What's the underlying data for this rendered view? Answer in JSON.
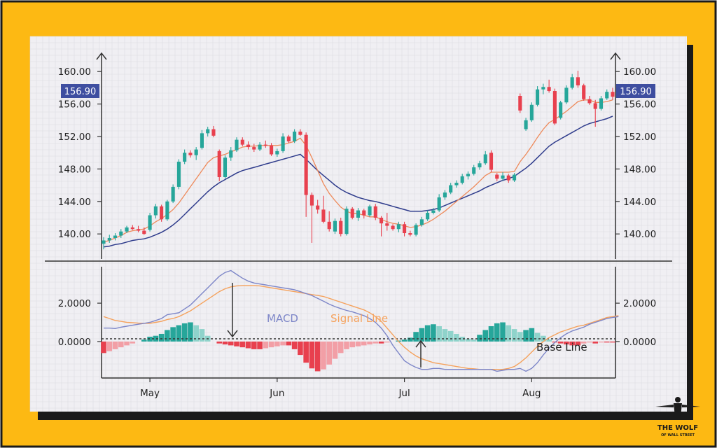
{
  "colors": {
    "frame": "#FDB913",
    "border": "#1a1a1a",
    "panel": "#F0EFF3",
    "grid": "#DCDBE2",
    "up": "#26A69A",
    "up_light": "#8FD3CB",
    "down": "#E8404E",
    "down_light": "#F29FA6",
    "fast_ma": "#EE8A5B",
    "slow_ma": "#2F3C8C",
    "macd_line": "#7D86C8",
    "signal_line": "#F5A25D",
    "price_badge": "#3E4EA0"
  },
  "chart_data": [
    {
      "type": "candlestick",
      "title": "",
      "ylim": [
        137,
        162
      ],
      "yticks": [
        "160.00",
        "156.00",
        "152.00",
        "148.00",
        "144.00",
        "140.00"
      ],
      "ytick_values": [
        160,
        156,
        152,
        148,
        144,
        140
      ],
      "last_price_label": "156.90",
      "last_price": 156.9,
      "xticks": [
        "May",
        "Jun",
        "Jul",
        "Aug"
      ],
      "xtick_positions": [
        8,
        30,
        52,
        74
      ],
      "candles": [
        [
          138.8,
          139.6,
          138.1,
          139.2
        ],
        [
          139.2,
          139.9,
          138.9,
          139.5
        ],
        [
          139.5,
          140.1,
          139.2,
          139.8
        ],
        [
          139.8,
          140.6,
          139.5,
          140.3
        ],
        [
          140.3,
          141.0,
          140.1,
          140.8
        ],
        [
          140.8,
          141.1,
          140.5,
          140.6
        ],
        [
          140.6,
          141.0,
          140.2,
          140.4
        ],
        [
          140.4,
          140.8,
          139.9,
          140.0
        ],
        [
          140.5,
          142.6,
          140.3,
          142.3
        ],
        [
          142.3,
          143.7,
          141.9,
          143.4
        ],
        [
          143.4,
          143.6,
          141.5,
          141.8
        ],
        [
          141.8,
          144.2,
          141.6,
          144.0
        ],
        [
          144.0,
          146.1,
          143.8,
          145.8
        ],
        [
          145.8,
          149.2,
          145.5,
          148.9
        ],
        [
          148.9,
          150.4,
          148.6,
          150.0
        ],
        [
          150.0,
          150.3,
          149.4,
          149.7
        ],
        [
          149.7,
          150.7,
          149.1,
          150.4
        ],
        [
          150.6,
          152.8,
          150.4,
          152.4
        ],
        [
          152.4,
          153.2,
          152.0,
          152.9
        ],
        [
          152.9,
          153.3,
          151.9,
          152.1
        ],
        [
          150.2,
          150.4,
          146.5,
          147.0
        ],
        [
          147.0,
          149.7,
          146.8,
          149.4
        ],
        [
          149.4,
          150.7,
          149.0,
          150.3
        ],
        [
          150.3,
          151.9,
          150.1,
          151.6
        ],
        [
          151.6,
          151.9,
          150.8,
          151.0
        ],
        [
          151.0,
          151.4,
          150.4,
          150.7
        ],
        [
          150.7,
          151.1,
          150.1,
          150.4
        ],
        [
          150.4,
          151.3,
          150.2,
          151.0
        ],
        [
          151.0,
          151.5,
          150.6,
          150.9
        ],
        [
          150.9,
          151.2,
          149.6,
          149.8
        ],
        [
          149.8,
          150.5,
          149.5,
          150.2
        ],
        [
          150.2,
          152.4,
          150.0,
          152.0
        ],
        [
          152.0,
          152.2,
          151.2,
          151.4
        ],
        [
          151.4,
          152.9,
          151.2,
          152.6
        ],
        [
          152.6,
          152.9,
          152.1,
          152.2
        ],
        [
          152.2,
          152.5,
          142.1,
          144.8
        ],
        [
          144.8,
          145.1,
          138.9,
          143.5
        ],
        [
          143.5,
          144.2,
          142.5,
          143.0
        ],
        [
          143.0,
          144.7,
          141.3,
          141.5
        ],
        [
          141.5,
          142.8,
          140.3,
          140.6
        ],
        [
          140.3,
          141.9,
          140.0,
          141.6
        ],
        [
          141.6,
          142.0,
          139.7,
          140.0
        ],
        [
          140.0,
          143.4,
          139.8,
          143.1
        ],
        [
          143.1,
          143.3,
          141.8,
          142.0
        ],
        [
          142.0,
          143.2,
          141.6,
          142.9
        ],
        [
          142.9,
          143.1,
          141.9,
          142.3
        ],
        [
          142.3,
          143.6,
          142.1,
          143.4
        ],
        [
          143.4,
          143.7,
          141.7,
          142.0
        ],
        [
          142.0,
          142.2,
          139.7,
          141.3
        ],
        [
          141.3,
          142.6,
          140.4,
          141.0
        ],
        [
          141.0,
          141.2,
          140.4,
          140.6
        ],
        [
          140.6,
          141.5,
          140.2,
          141.2
        ],
        [
          141.2,
          141.5,
          139.7,
          140.1
        ],
        [
          140.1,
          140.4,
          139.7,
          139.9
        ],
        [
          139.9,
          141.3,
          139.7,
          141.1
        ],
        [
          141.1,
          142.1,
          140.9,
          141.8
        ],
        [
          141.8,
          142.9,
          141.6,
          142.6
        ],
        [
          142.6,
          143.2,
          142.4,
          142.9
        ],
        [
          142.9,
          144.9,
          142.7,
          144.5
        ],
        [
          144.5,
          145.4,
          144.2,
          145.1
        ],
        [
          145.1,
          146.3,
          144.9,
          146.0
        ],
        [
          146.0,
          146.6,
          145.7,
          146.3
        ],
        [
          146.3,
          147.4,
          146.1,
          147.1
        ],
        [
          147.1,
          147.7,
          146.7,
          147.4
        ],
        [
          147.4,
          148.5,
          147.2,
          148.2
        ],
        [
          148.2,
          149.0,
          147.9,
          148.7
        ],
        [
          148.7,
          150.2,
          148.5,
          149.8
        ],
        [
          150.0,
          150.3,
          147.6,
          147.9
        ],
        [
          147.3,
          147.5,
          146.5,
          146.8
        ],
        [
          146.8,
          147.6,
          146.6,
          147.2
        ],
        [
          147.2,
          147.4,
          146.3,
          146.6
        ],
        [
          146.6,
          147.5,
          146.4,
          147.3
        ],
        [
          157.0,
          157.3,
          154.9,
          155.2
        ],
        [
          152.9,
          154.3,
          152.7,
          154.0
        ],
        [
          154.0,
          156.2,
          153.8,
          155.9
        ],
        [
          155.9,
          158.2,
          155.7,
          157.8
        ],
        [
          157.8,
          158.5,
          157.2,
          158.1
        ],
        [
          158.1,
          159.0,
          157.4,
          157.6
        ],
        [
          157.6,
          157.9,
          153.4,
          153.6
        ],
        [
          154.3,
          156.4,
          154.1,
          156.2
        ],
        [
          156.2,
          158.3,
          156.0,
          158.0
        ],
        [
          158.0,
          159.7,
          157.8,
          159.3
        ],
        [
          159.3,
          160.1,
          158.0,
          158.3
        ],
        [
          158.3,
          158.5,
          156.4,
          156.6
        ],
        [
          156.6,
          157.0,
          155.9,
          156.1
        ],
        [
          156.1,
          156.5,
          153.2,
          155.4
        ],
        [
          155.4,
          157.0,
          155.2,
          156.7
        ],
        [
          156.7,
          157.8,
          156.5,
          157.5
        ],
        [
          157.5,
          158.0,
          156.5,
          156.9
        ]
      ],
      "series": [
        {
          "name": "fast_ma",
          "values": [
            139.0,
            139.2,
            139.5,
            139.8,
            140.2,
            140.4,
            140.5,
            140.6,
            141.0,
            141.5,
            141.9,
            142.4,
            143.0,
            143.8,
            144.8,
            145.8,
            146.8,
            147.8,
            148.8,
            149.4,
            149.6,
            149.8,
            150.1,
            150.4,
            150.7,
            150.8,
            150.8,
            150.9,
            150.9,
            150.9,
            150.9,
            151.0,
            151.2,
            151.4,
            151.8,
            150.9,
            149.4,
            147.8,
            146.2,
            145.0,
            144.1,
            143.3,
            142.8,
            142.5,
            142.5,
            142.3,
            142.1,
            142.1,
            141.8,
            141.5,
            141.3,
            141.2,
            141.0,
            140.8,
            140.9,
            141.1,
            141.4,
            141.8,
            142.3,
            142.8,
            143.4,
            144.0,
            144.6,
            145.2,
            145.8,
            146.5,
            147.2,
            147.6,
            147.6,
            147.6,
            147.6,
            147.7,
            148.9,
            149.8,
            150.8,
            151.9,
            152.9,
            153.7,
            154.1,
            154.6,
            155.1,
            155.7,
            156.3,
            156.5,
            156.5,
            156.2,
            156.2,
            156.3,
            156.5
          ]
        },
        {
          "name": "slow_ma",
          "values": [
            138.4,
            138.5,
            138.7,
            138.8,
            139.0,
            139.2,
            139.3,
            139.4,
            139.6,
            139.9,
            140.2,
            140.6,
            141.1,
            141.7,
            142.4,
            143.1,
            143.8,
            144.5,
            145.2,
            145.8,
            146.3,
            146.7,
            147.1,
            147.5,
            147.8,
            148.0,
            148.2,
            148.4,
            148.6,
            148.8,
            149.0,
            149.2,
            149.4,
            149.6,
            149.8,
            149.2,
            148.5,
            147.8,
            147.2,
            146.6,
            146.0,
            145.5,
            145.1,
            144.8,
            144.5,
            144.3,
            144.1,
            144.0,
            143.8,
            143.6,
            143.4,
            143.2,
            143.0,
            142.8,
            142.8,
            142.8,
            142.9,
            143.0,
            143.2,
            143.5,
            143.8,
            144.1,
            144.4,
            144.7,
            145.0,
            145.3,
            145.7,
            146.0,
            146.3,
            146.6,
            146.8,
            147.1,
            147.6,
            148.1,
            148.7,
            149.4,
            150.1,
            150.8,
            151.3,
            151.7,
            152.1,
            152.5,
            152.9,
            153.3,
            153.6,
            153.8,
            154.0,
            154.2,
            154.5
          ]
        }
      ]
    },
    {
      "type": "line+bar",
      "title": "",
      "ylim": [
        -1.9,
        3.9
      ],
      "yticks": [
        "2.0000",
        "0.0000"
      ],
      "ytick_values": [
        2,
        0
      ],
      "series": [
        {
          "name": "MACD",
          "values": [
            0.7,
            0.7,
            0.68,
            0.75,
            0.8,
            0.85,
            0.9,
            0.95,
            1.0,
            1.1,
            1.2,
            1.4,
            1.45,
            1.5,
            1.7,
            1.9,
            2.2,
            2.5,
            2.8,
            3.1,
            3.4,
            3.6,
            3.7,
            3.5,
            3.3,
            3.15,
            3.05,
            3.0,
            2.95,
            2.9,
            2.85,
            2.8,
            2.75,
            2.7,
            2.6,
            2.5,
            2.4,
            2.25,
            2.1,
            1.95,
            1.82,
            1.72,
            1.62,
            1.55,
            1.45,
            1.35,
            1.2,
            1.0,
            0.7,
            0.3,
            -0.2,
            -0.6,
            -1.0,
            -1.2,
            -1.35,
            -1.45,
            -1.45,
            -1.4,
            -1.4,
            -1.45,
            -1.45,
            -1.45,
            -1.45,
            -1.45,
            -1.45,
            -1.45,
            -1.45,
            -1.45,
            -1.55,
            -1.5,
            -1.45,
            -1.45,
            -1.4,
            -1.55,
            -1.4,
            -1.1,
            -0.7,
            -0.35,
            -0.05,
            0.2,
            0.4,
            0.55,
            0.65,
            0.75,
            0.9,
            1.0,
            1.1,
            1.2,
            1.25,
            1.3
          ]
        },
        {
          "name": "Signal Line",
          "values": [
            1.3,
            1.2,
            1.1,
            1.05,
            1.0,
            0.98,
            0.96,
            0.95,
            0.95,
            1.0,
            1.05,
            1.15,
            1.2,
            1.3,
            1.45,
            1.6,
            1.8,
            2.0,
            2.2,
            2.4,
            2.6,
            2.75,
            2.85,
            2.9,
            2.92,
            2.92,
            2.92,
            2.9,
            2.85,
            2.8,
            2.75,
            2.7,
            2.65,
            2.6,
            2.55,
            2.5,
            2.45,
            2.4,
            2.35,
            2.25,
            2.15,
            2.05,
            1.95,
            1.85,
            1.75,
            1.65,
            1.5,
            1.3,
            1.05,
            0.7,
            0.35,
            0.0,
            -0.3,
            -0.55,
            -0.75,
            -0.9,
            -1.0,
            -1.1,
            -1.15,
            -1.2,
            -1.25,
            -1.3,
            -1.35,
            -1.4,
            -1.42,
            -1.45,
            -1.45,
            -1.45,
            -1.45,
            -1.45,
            -1.4,
            -1.3,
            -1.1,
            -0.85,
            -0.55,
            -0.25,
            0.0,
            0.2,
            0.35,
            0.5,
            0.6,
            0.7,
            0.8,
            0.85,
            0.95,
            1.05,
            1.15,
            1.25,
            1.3,
            1.35
          ]
        },
        {
          "name": "Histogram",
          "values": [
            -0.6,
            -0.5,
            -0.4,
            -0.3,
            -0.2,
            -0.1,
            0.0,
            0.1,
            0.25,
            0.3,
            0.4,
            0.6,
            0.75,
            0.85,
            0.95,
            1.0,
            0.85,
            0.65,
            0.3,
            0.0,
            -0.1,
            -0.15,
            -0.2,
            -0.25,
            -0.3,
            -0.35,
            -0.4,
            -0.4,
            -0.35,
            -0.3,
            -0.25,
            -0.2,
            -0.2,
            -0.4,
            -0.7,
            -1.1,
            -1.4,
            -1.55,
            -1.45,
            -1.2,
            -0.9,
            -0.6,
            -0.4,
            -0.3,
            -0.25,
            -0.2,
            -0.15,
            -0.1,
            -0.1,
            -0.05,
            0.0,
            0.05,
            0.1,
            0.2,
            0.5,
            0.7,
            0.85,
            0.9,
            0.8,
            0.65,
            0.55,
            0.4,
            0.25,
            0.15,
            0.1,
            0.35,
            0.6,
            0.8,
            0.95,
            1.0,
            0.85,
            0.65,
            0.5,
            0.6,
            0.7,
            0.45,
            0.3,
            0.1,
            -0.05,
            -0.1,
            -0.15,
            -0.2,
            -0.2,
            -0.1,
            -0.05,
            -0.1,
            -0.05,
            -0.05,
            -0.05
          ]
        }
      ]
    }
  ],
  "labels": {
    "macd": "MACD",
    "signal": "Signal Line",
    "base": "Base Line"
  },
  "logo": {
    "line1": "THE WOLF",
    "line2": "OF WALL STREET"
  }
}
